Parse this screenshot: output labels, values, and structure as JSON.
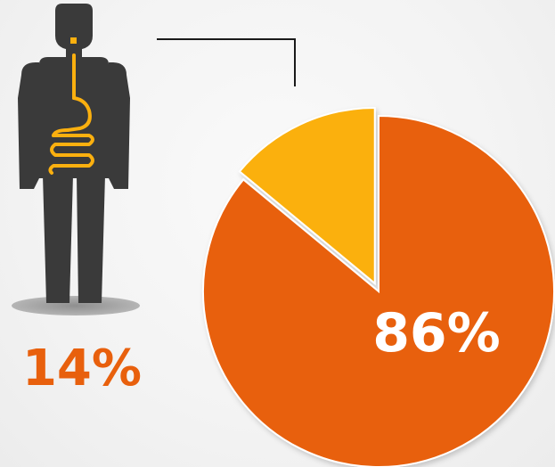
{
  "chart_data": {
    "type": "pie",
    "slices": [
      {
        "label": "14%",
        "value": 14,
        "color": "#fbb00f",
        "exploded": true
      },
      {
        "label": "86%",
        "value": 86,
        "color": "#e8600d",
        "exploded": false
      }
    ],
    "start_angle_deg": 0,
    "direction": "counterclockwise",
    "title": "",
    "legend": "none"
  },
  "colors": {
    "figure": "#3a3a3a",
    "digestive_tract": "#fbb00f",
    "shadow": "#9a9a9a",
    "connector": "#1a1a1a",
    "label_small": "#e8600d",
    "label_large": "#ffffff"
  },
  "icons": {
    "figure": "human-digestive-system-icon"
  }
}
